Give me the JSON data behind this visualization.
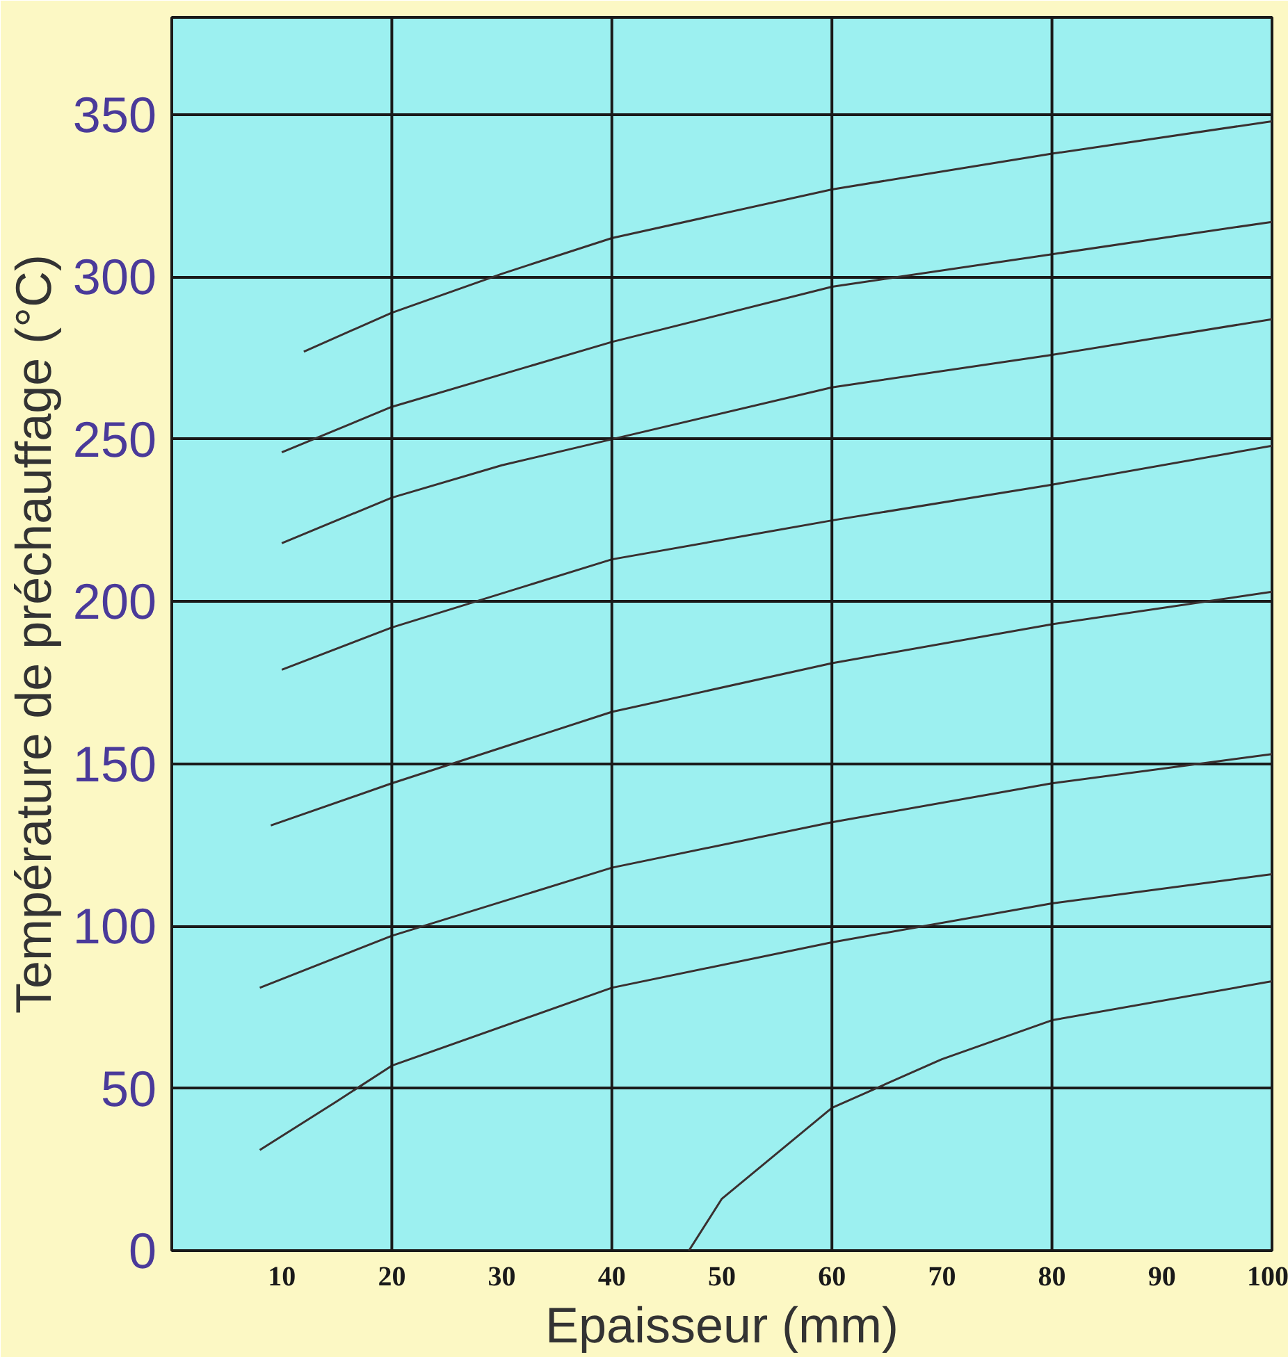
{
  "chart_data": {
    "type": "line",
    "xlabel": "Epaisseur (mm)",
    "ylabel": "Température de préchauffage (°C)",
    "xlim": [
      0,
      100
    ],
    "ylim": [
      0,
      380
    ],
    "xticks": [
      10,
      20,
      30,
      40,
      50,
      60,
      70,
      80,
      90,
      100
    ],
    "yticks": [
      0,
      50,
      100,
      150,
      200,
      250,
      300,
      350
    ],
    "grid": "y",
    "marker": "none",
    "line_style": "solid",
    "ref_lines": [
      {
        "axis": "x",
        "value": 20,
        "color": "#1a1a1a"
      },
      {
        "axis": "x",
        "value": 40,
        "color": "#1a1a1a"
      },
      {
        "axis": "x",
        "value": 60,
        "color": "#1a1a1a"
      },
      {
        "axis": "x",
        "value": 80,
        "color": "#1a1a1a"
      }
    ],
    "series": [
      {
        "color": "#3a3030",
        "x": [
          12,
          20,
          30,
          40,
          60,
          80,
          100
        ],
        "values": [
          277,
          289,
          301,
          312,
          327,
          338,
          348
        ]
      },
      {
        "color": "#3a3030",
        "x": [
          10,
          20,
          40,
          60,
          80,
          100
        ],
        "values": [
          246,
          260,
          280,
          297,
          307,
          317
        ]
      },
      {
        "color": "#3a3030",
        "x": [
          10,
          20,
          30,
          40,
          60,
          80,
          100
        ],
        "values": [
          218,
          232,
          242,
          250,
          266,
          276,
          287
        ]
      },
      {
        "color": "#3a3030",
        "x": [
          10,
          20,
          40,
          60,
          80,
          100
        ],
        "values": [
          179,
          192,
          213,
          225,
          236,
          248
        ]
      },
      {
        "color": "#3a3030",
        "x": [
          9,
          20,
          40,
          60,
          80,
          100
        ],
        "values": [
          131,
          144,
          166,
          181,
          193,
          203
        ]
      },
      {
        "color": "#3a3030",
        "x": [
          8,
          20,
          40,
          60,
          80,
          100
        ],
        "values": [
          81,
          97,
          118,
          132,
          144,
          153
        ]
      },
      {
        "color": "#3a3030",
        "x": [
          8,
          15,
          20,
          40,
          60,
          80,
          100
        ],
        "values": [
          31,
          46,
          57,
          81,
          95,
          107,
          116
        ]
      },
      {
        "color": "#3a3030",
        "x": [
          47,
          50,
          60,
          70,
          80,
          100
        ],
        "values": [
          0,
          16,
          44,
          59,
          71,
          83
        ]
      }
    ]
  }
}
